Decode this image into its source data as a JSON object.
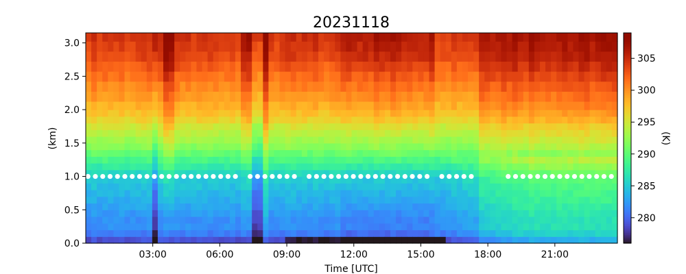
{
  "chart_data": {
    "type": "heatmap",
    "title": "20231118",
    "xlabel": "Time [UTC]",
    "ylabel": "(km)",
    "colorbar_label": "(K)",
    "colormap": "turbo",
    "x_unit": "hours UTC",
    "xlim": [
      0.0,
      23.8
    ],
    "ylim": [
      0.0,
      3.15
    ],
    "clim": [
      276,
      309
    ],
    "x_ticks": [
      3,
      6,
      9,
      12,
      15,
      18,
      21
    ],
    "x_tick_labels": [
      "03:00",
      "06:00",
      "09:00",
      "12:00",
      "15:00",
      "18:00",
      "21:00"
    ],
    "y_ticks": [
      0.0,
      0.5,
      1.0,
      1.5,
      2.0,
      2.5,
      3.0
    ],
    "y_tick_labels": [
      "0.0",
      "0.5",
      "1.0",
      "1.5",
      "2.0",
      "2.5",
      "3.0"
    ],
    "colorbar_ticks": [
      280,
      285,
      290,
      295,
      300,
      305
    ],
    "colorbar_tick_labels": [
      "280",
      "285",
      "290",
      "295",
      "300",
      "305"
    ],
    "y": [
      0.05,
      0.15,
      0.25,
      0.35,
      0.45,
      0.55,
      0.65,
      0.75,
      0.85,
      0.95,
      1.05,
      1.15,
      1.25,
      1.35,
      1.45,
      1.55,
      1.65,
      1.75,
      1.85,
      1.95,
      2.05,
      2.2,
      2.35,
      2.5,
      2.65,
      2.8,
      2.95,
      3.1
    ],
    "profile_K": [
      279,
      281,
      282,
      282,
      282.5,
      283,
      283.5,
      284,
      284.5,
      285,
      286,
      287.5,
      289,
      290.5,
      292,
      293,
      294,
      295,
      296.5,
      297.5,
      298.5,
      299.5,
      300.5,
      301.5,
      302.5,
      303.5,
      304,
      304.5
    ],
    "anomalies": [
      {
        "t0": 2.95,
        "t1": 3.25,
        "dT": -5,
        "dT_high": 2
      },
      {
        "t0": 3.55,
        "t1": 3.85,
        "dT": 0,
        "dT_high": 4
      },
      {
        "t0": 7.55,
        "t1": 7.85,
        "dT": -4,
        "dT_high": -1
      },
      {
        "t0": 7.85,
        "t1": 8.15,
        "dT": 1,
        "dT_high": 5
      },
      {
        "t0": 6.9,
        "t1": 7.4,
        "dT": 0,
        "dT_high": 3
      },
      {
        "t0": 17.5,
        "t1": 23.8,
        "dT": 1.5,
        "dT_high": 2.5
      },
      {
        "t0": 11.5,
        "t1": 15.5,
        "dT": -1,
        "dT_high": 2
      }
    ],
    "marker_level_km": 1.0,
    "marker_gaps": [
      [
        6.9,
        7.3
      ],
      [
        9.4,
        9.9
      ],
      [
        15.6,
        15.9
      ],
      [
        17.4,
        18.6
      ]
    ],
    "marker_spacing_h": 0.33
  }
}
